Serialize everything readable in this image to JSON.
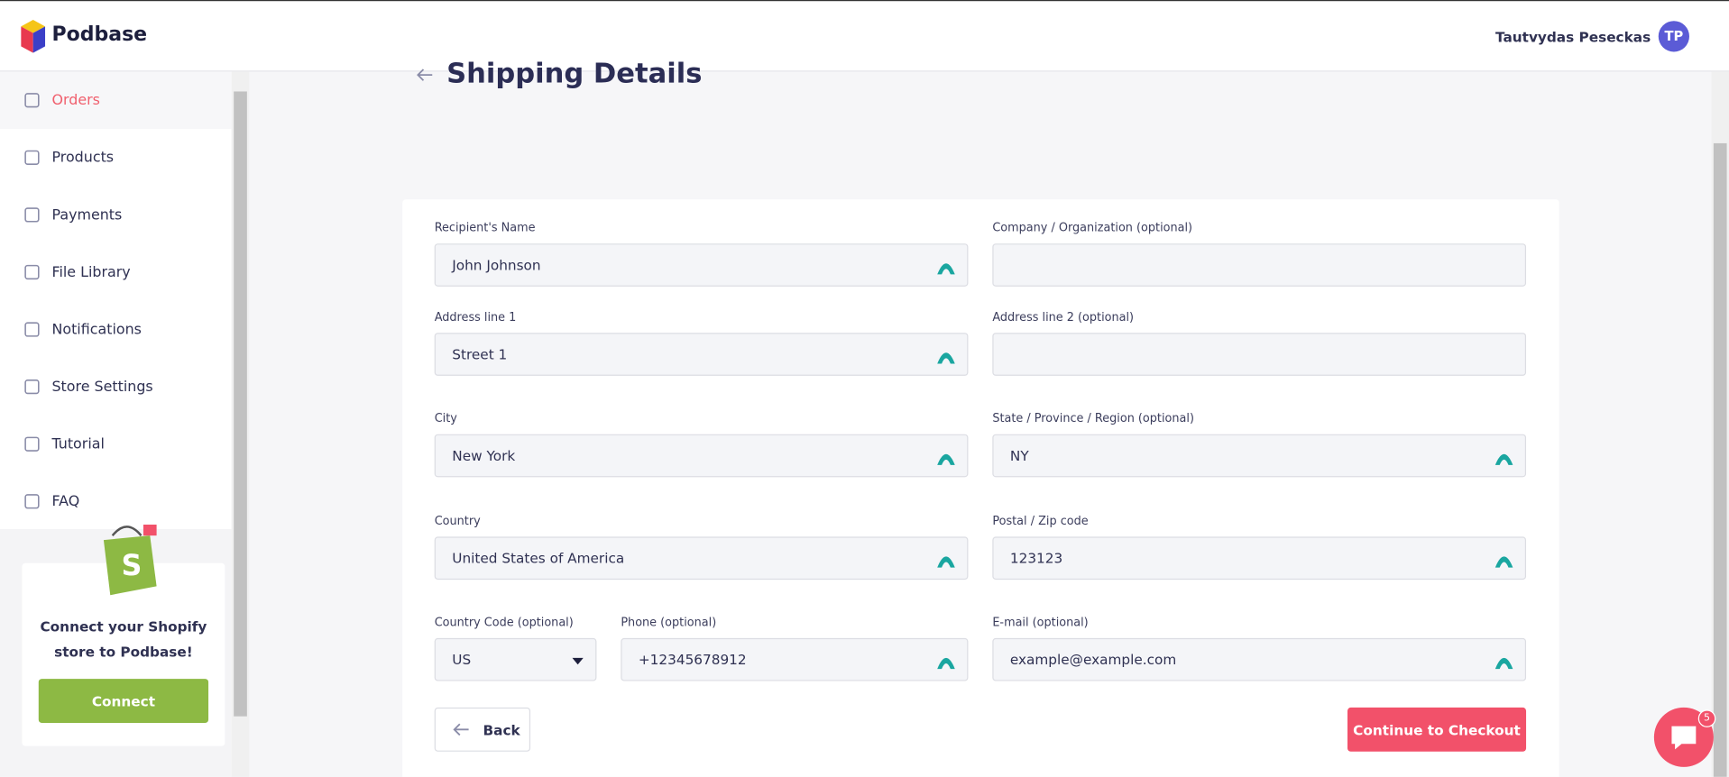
{
  "header": {
    "brand": "Podbase",
    "user_name": "Tautvydas Peseckas",
    "avatar_initials": "TP"
  },
  "sidebar": {
    "nav": [
      "Orders",
      "Products",
      "Payments",
      "File Library",
      "Notifications",
      "Store Settings",
      "Tutorial",
      "FAQ"
    ],
    "active": "Orders",
    "promo": {
      "text_line1": "Connect your Shopify",
      "text_line2": "store to Podbase!",
      "button": "Connect"
    }
  },
  "page": {
    "title": "Shipping Details",
    "fields": [
      {
        "label": "Recipient's Name",
        "value": "John Johnson"
      },
      {
        "label": "Company / Organization (optional)"
      },
      {
        "label": "Address line 1",
        "value": "Street 1"
      },
      {
        "label": "Address line 2 (optional)"
      },
      {
        "label": "City",
        "value": "New York"
      },
      {
        "label": "State / Province / Region (optional)",
        "value": "NY"
      },
      {
        "label": "Country",
        "value": "United States of America"
      },
      {
        "label": "Postal / Zip code",
        "value": "123123"
      },
      {
        "label": "Country Code (optional)",
        "value": "US"
      },
      {
        "label": "Phone (optional)",
        "value": "+12345678912"
      },
      {
        "label": "E-mail (optional)",
        "value": "example@example.com"
      }
    ],
    "back_button": "Back",
    "continue_button": "Continue to Checkout"
  },
  "chat": {
    "badge": "5"
  }
}
